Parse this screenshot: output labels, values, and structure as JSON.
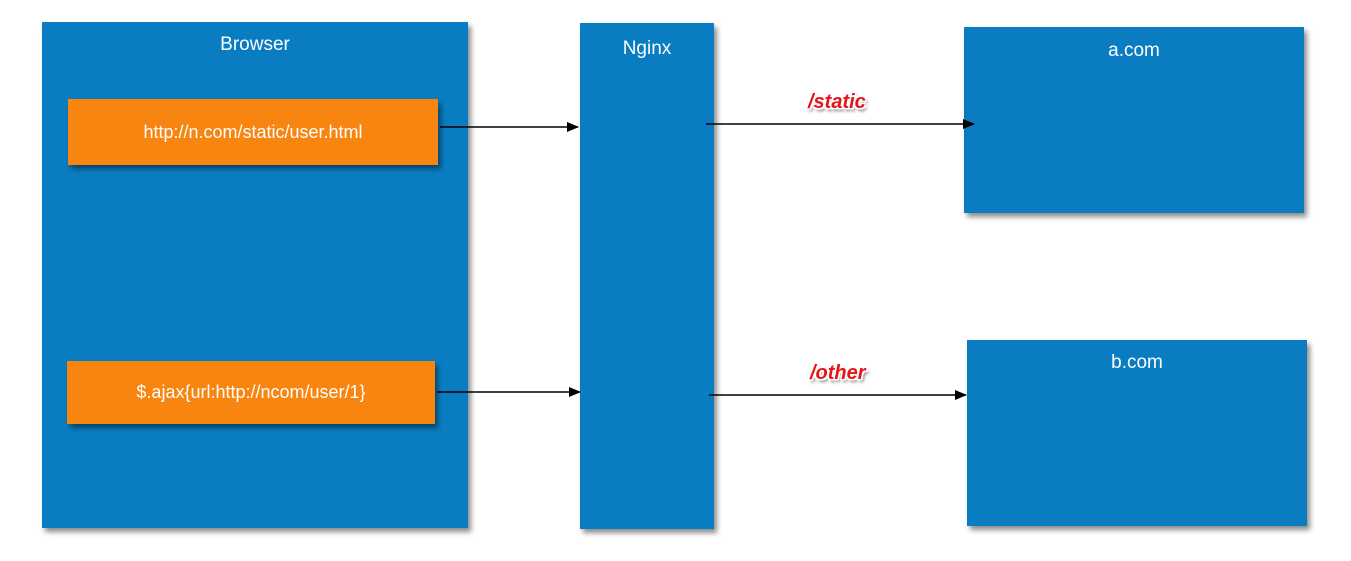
{
  "browser": {
    "title": "Browser",
    "requests": [
      {
        "label": "http://n.com/static/user.html"
      },
      {
        "label": "$.ajax{url:http://ncom/user/1}"
      }
    ]
  },
  "nginx": {
    "title": "Nginx"
  },
  "servers": [
    {
      "title": "a.com",
      "route": "/static"
    },
    {
      "title": "b.com",
      "route": "/other"
    }
  ],
  "colors": {
    "box": "#0a7dc2",
    "request": "#f7850f",
    "route_label": "#e8141b"
  }
}
